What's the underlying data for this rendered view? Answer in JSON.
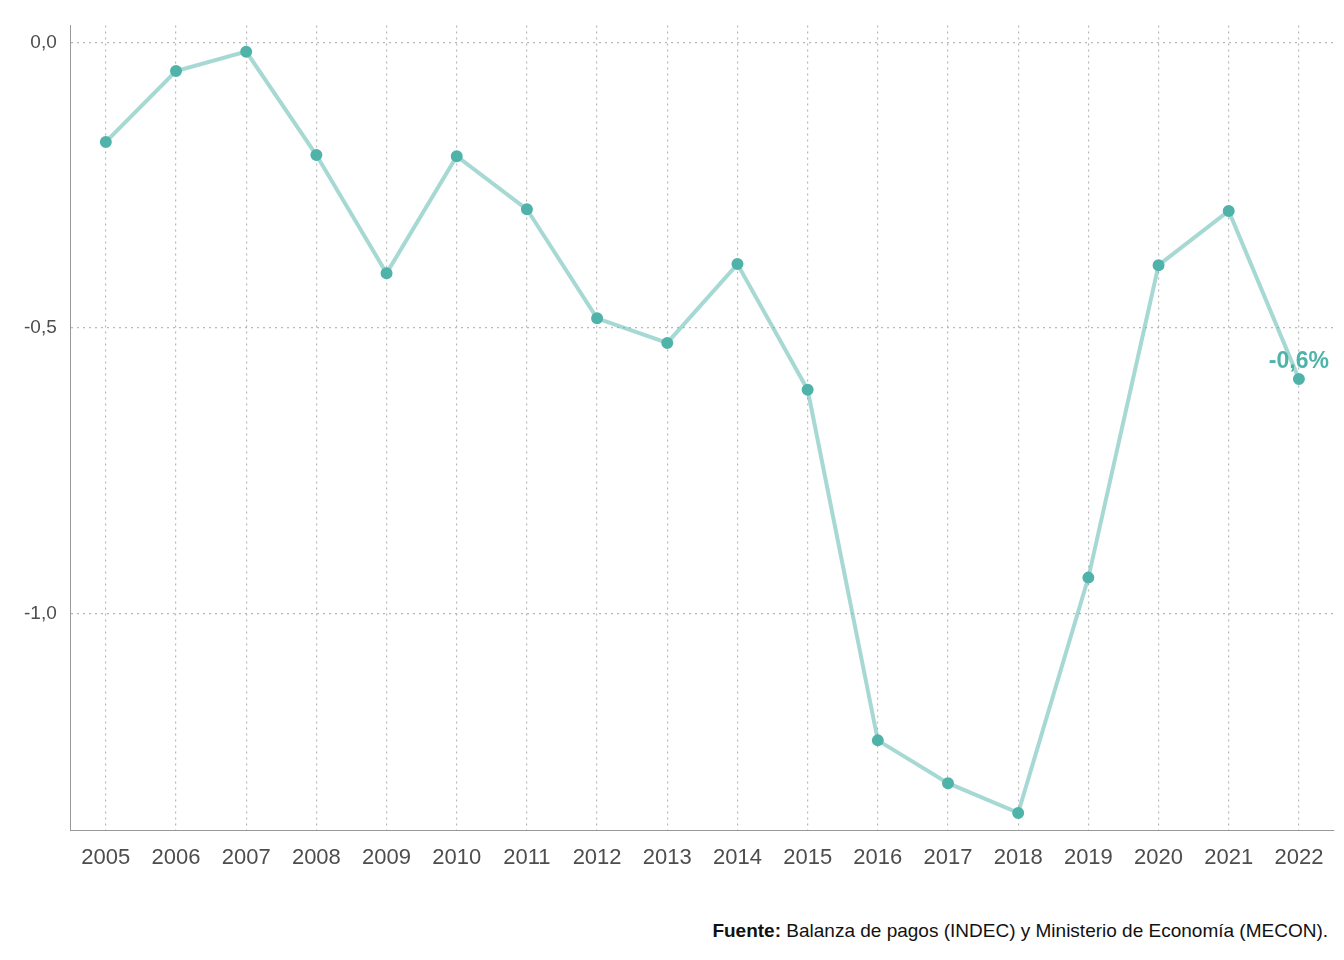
{
  "chart_data": {
    "type": "line",
    "categories": [
      "2005",
      "2006",
      "2007",
      "2008",
      "2009",
      "2010",
      "2011",
      "2012",
      "2013",
      "2014",
      "2015",
      "2016",
      "2017",
      "2018",
      "2019",
      "2020",
      "2021",
      "2022"
    ],
    "values": [
      -0.174,
      -0.05,
      -0.016,
      -0.197,
      -0.404,
      -0.199,
      -0.292,
      -0.483,
      -0.526,
      -0.388,
      -0.608,
      -1.222,
      -1.297,
      -1.349,
      -0.937,
      -0.39,
      -0.295,
      -0.589
    ],
    "color": "#4fb3aa",
    "marker": "circle",
    "ylim": [
      -1.38,
      0.03
    ],
    "yticks": [
      {
        "value": 0,
        "label": "0,0"
      },
      {
        "value": -0.5,
        "label": "-0,5"
      },
      {
        "value": -1,
        "label": "-1,0"
      }
    ],
    "grid": true,
    "annotations": [
      {
        "category": "2022",
        "text": "-0,6%"
      }
    ],
    "source_label": "Fuente:",
    "source": "Balanza de pagos (INDEC) y Ministerio de Economía (MECON)."
  }
}
